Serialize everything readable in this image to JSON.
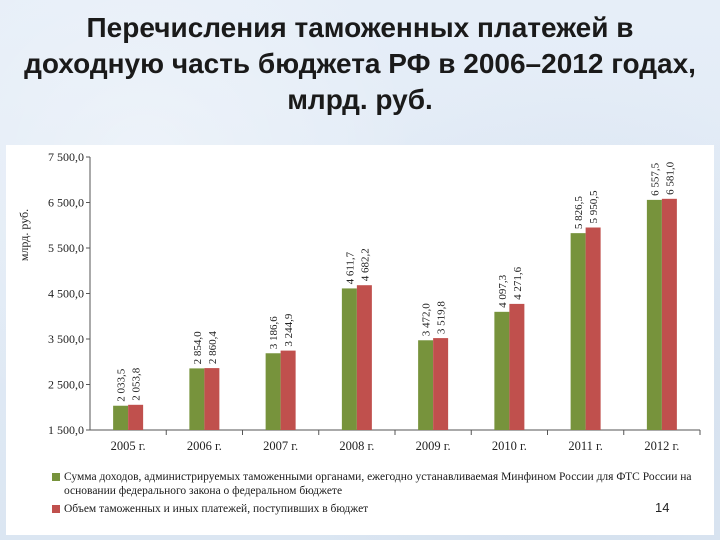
{
  "title": "Перечисления таможенных платежей в доходную часть  бюджета РФ в 2006–2012 годах, млрд. руб.",
  "page_number": "14",
  "colors": {
    "series1": "#77933c",
    "series2": "#c0504d"
  },
  "chart_data": {
    "type": "bar",
    "ylabel": "млрд. руб.",
    "ylim": [
      1500,
      7500
    ],
    "yticks": [
      "7 500,0",
      "6 500,0",
      "5 500,0",
      "4 500,0",
      "3 500,0",
      "2 500,0",
      "1 500,0"
    ],
    "ytick_values": [
      7500,
      6500,
      5500,
      4500,
      3500,
      2500,
      1500
    ],
    "categories": [
      "2005 г.",
      "2006 г.",
      "2007 г.",
      "2008 г.",
      "2009 г.",
      "2010 г.",
      "2011 г.",
      "2012 г."
    ],
    "series": [
      {
        "name": "Сумма доходов, администрируемых таможенными органами, ежегодно устанавливаемая Минфином России для ФТС России на основании федерального закона о федеральном бюджете",
        "values": [
          2033.5,
          2854.0,
          3186.6,
          4611.7,
          3472.0,
          4097.3,
          5826.5,
          6557.5
        ],
        "labels": [
          "2 033,5",
          "2 854,0",
          "3 186,6",
          "4 611,7",
          "3 472,0",
          "4 097,3",
          "5 826,5",
          "6 557,5"
        ]
      },
      {
        "name": "Объем таможенных и иных платежей, поступивших в бюджет",
        "values": [
          2053.8,
          2860.4,
          3244.9,
          4682.2,
          3519.8,
          4271.6,
          5950.5,
          6581.0
        ],
        "labels": [
          "2 053,8",
          "2 860,4",
          "3 244,9",
          "4 682,2",
          "3 519,8",
          "4 271,6",
          "5 950,5",
          "6 581,0"
        ]
      }
    ],
    "grid": false,
    "legend_position": "bottom"
  }
}
